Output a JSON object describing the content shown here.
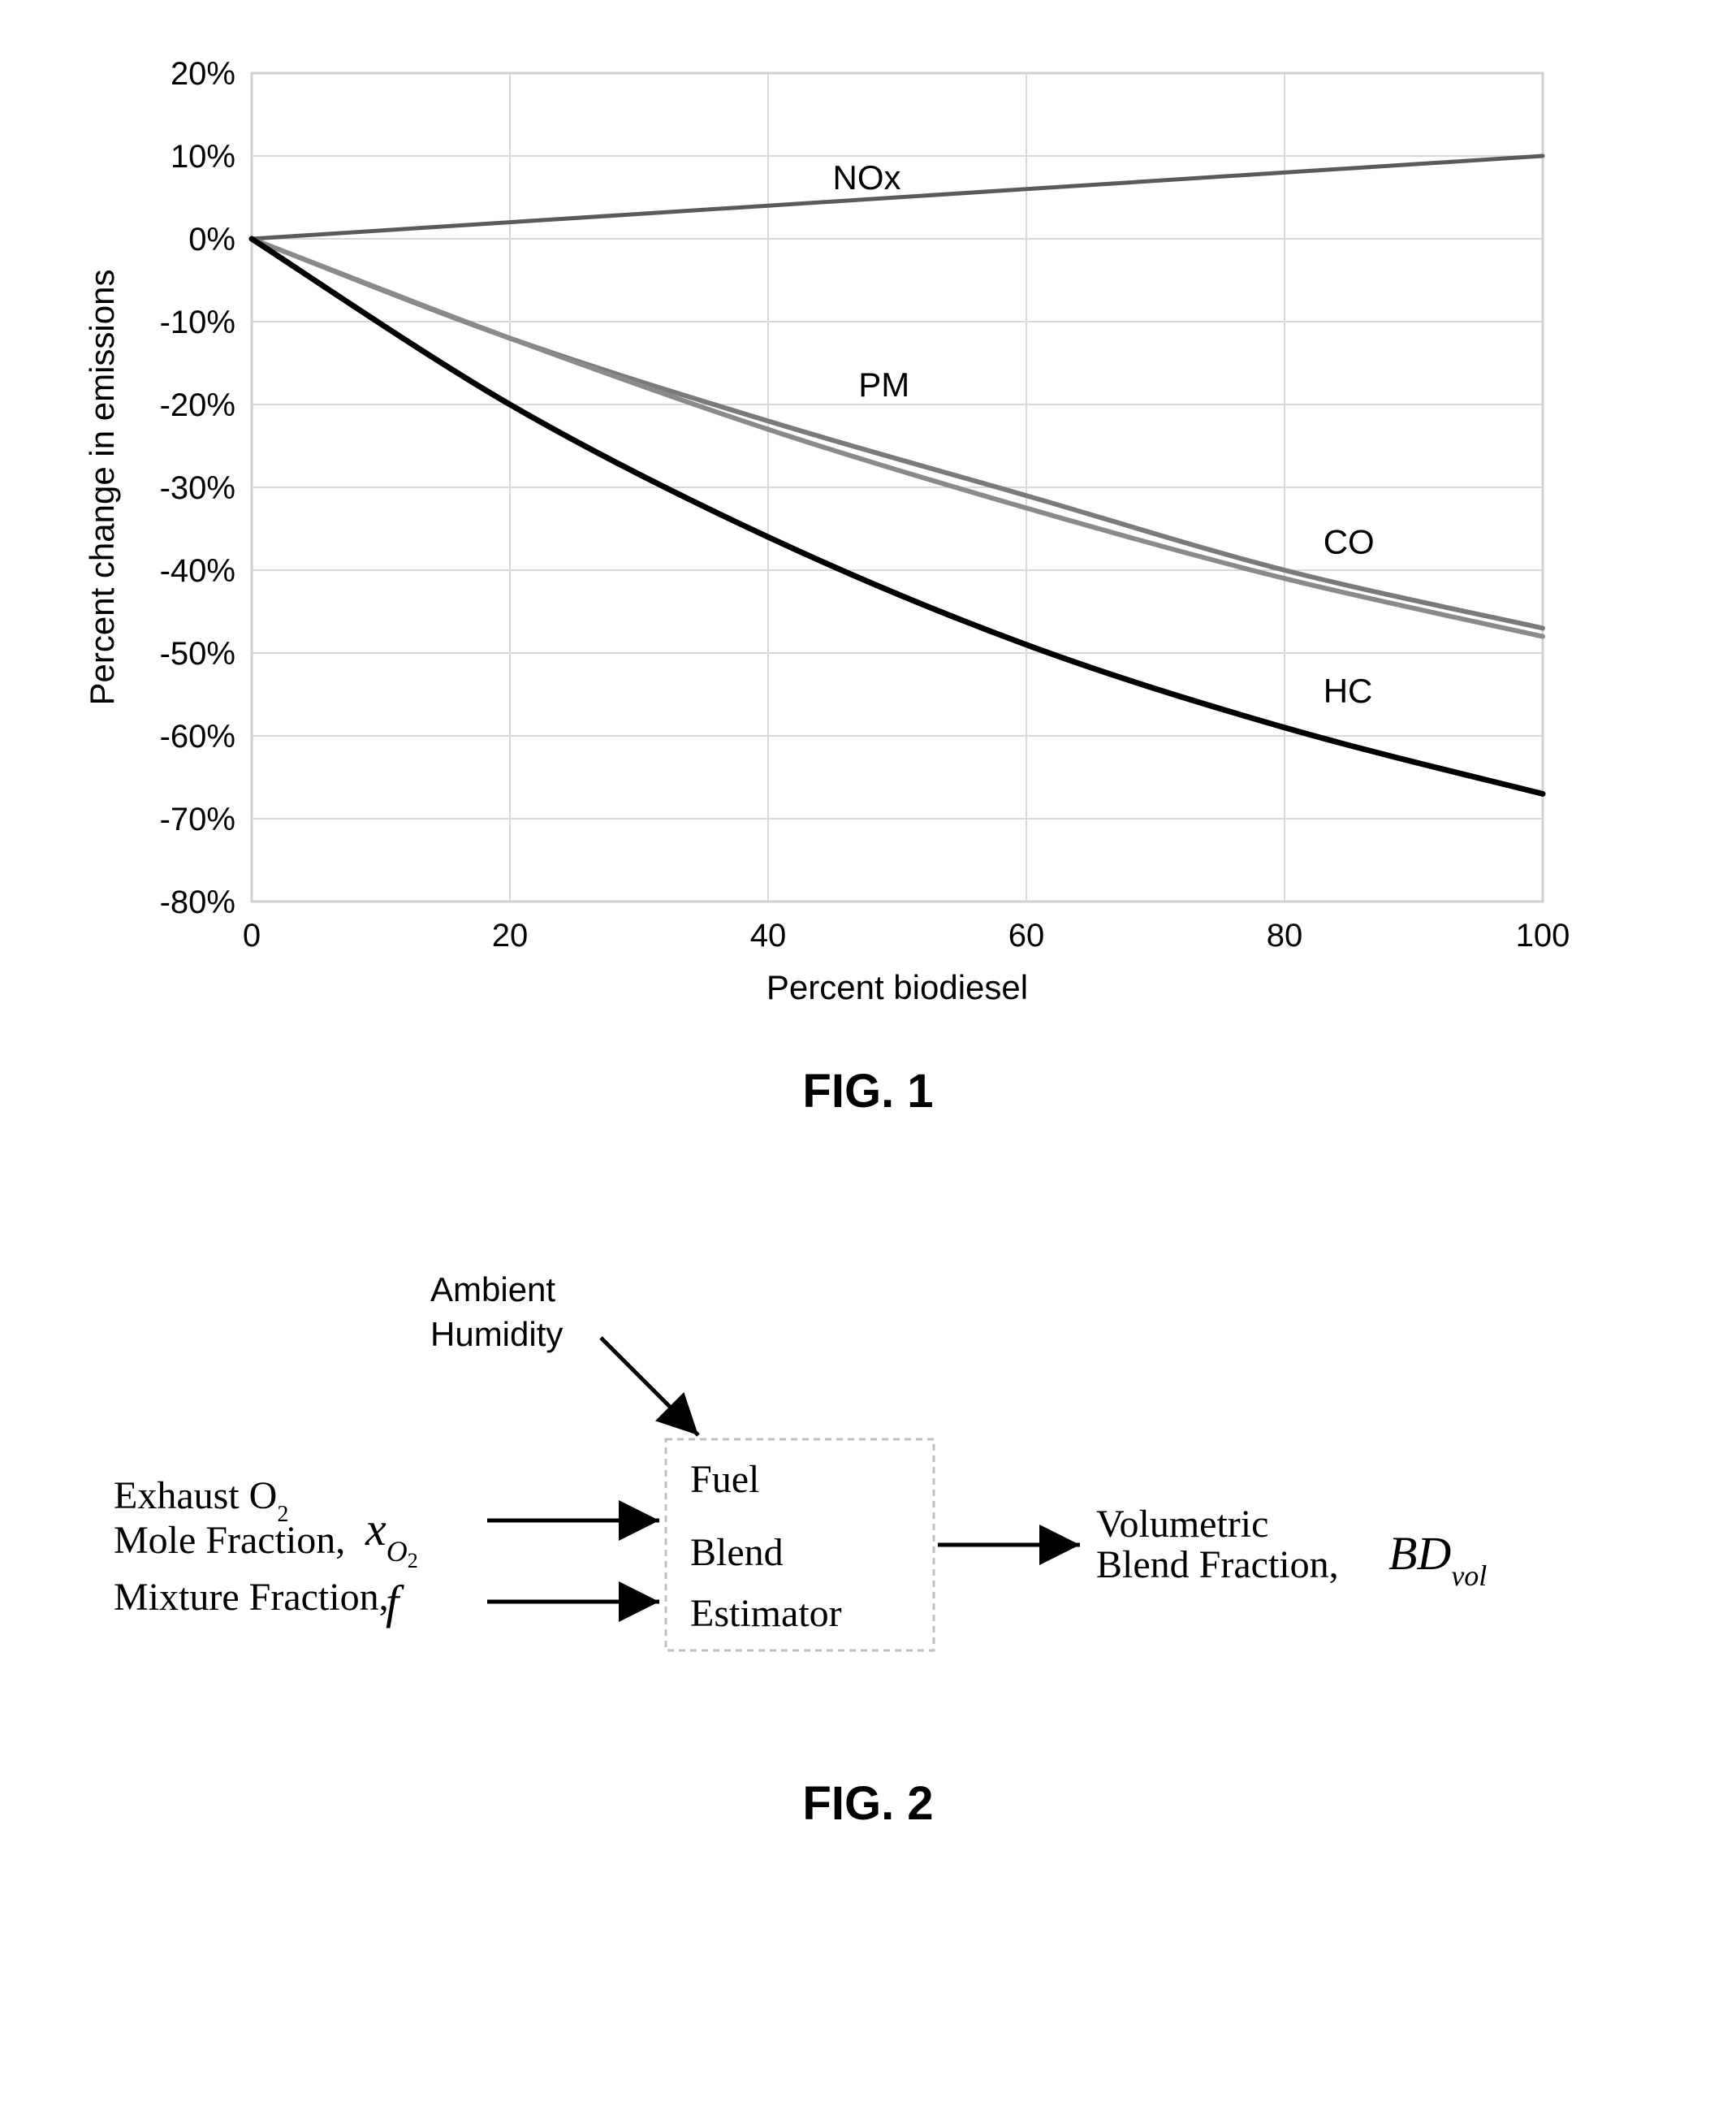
{
  "fig1": {
    "type": "line",
    "caption": "FIG. 1",
    "xlabel": "Percent biodiesel",
    "ylabel": "Percent change in emissions",
    "background_color": "#ffffff",
    "plot_background": "#ffffff",
    "plot_border_color": "#d0d0d0",
    "grid_color": "#d8d8d8",
    "text_color": "#000000",
    "label_fontsize": 42,
    "tick_fontsize": 40,
    "xlim": [
      0,
      100
    ],
    "ylim": [
      -80,
      20
    ],
    "xticks": [
      0,
      20,
      40,
      60,
      80,
      100
    ],
    "yticks": [
      -80,
      -70,
      -60,
      -50,
      -40,
      -30,
      -20,
      -10,
      0,
      10,
      20
    ],
    "ytick_labels": [
      "-80%",
      "-70%",
      "-60%",
      "-50%",
      "-40%",
      "-30%",
      "-20%",
      "-10%",
      "0%",
      "10%",
      "20%"
    ],
    "series": [
      {
        "name": "NOx",
        "label": "NOx",
        "color": "#5a5a5a",
        "width": 5,
        "x": [
          0,
          20,
          40,
          60,
          80,
          100
        ],
        "y": [
          0,
          2,
          4,
          6,
          8,
          10
        ],
        "label_pos": {
          "x": 45,
          "y": 6
        }
      },
      {
        "name": "PM",
        "label": "PM",
        "color": "#7a7a7a",
        "width": 6,
        "x": [
          0,
          20,
          40,
          60,
          80,
          100
        ],
        "y": [
          0,
          -12,
          -22,
          -31,
          -40,
          -47
        ],
        "label_pos": {
          "x": 47,
          "y": -19
        }
      },
      {
        "name": "CO",
        "label": "CO",
        "color": "#8a8a8a",
        "width": 6,
        "x": [
          0,
          20,
          40,
          60,
          80,
          100
        ],
        "y": [
          0,
          -12,
          -23,
          -32.5,
          -41,
          -48
        ],
        "label_pos": {
          "x": 83,
          "y": -38
        }
      },
      {
        "name": "HC",
        "label": "HC",
        "color": "#000000",
        "width": 7,
        "x": [
          0,
          20,
          40,
          60,
          80,
          100
        ],
        "y": [
          0,
          -20,
          -36,
          -49,
          -59,
          -67
        ],
        "label_pos": {
          "x": 83,
          "y": -56
        }
      }
    ]
  },
  "fig2": {
    "type": "flowchart",
    "caption": "FIG. 2",
    "text_color": "#000000",
    "box_border_color": "#bfbfbf",
    "box_background": "#ffffff",
    "arrow_color": "#000000",
    "inputs": {
      "ambient": {
        "label": "Ambient Humidity"
      },
      "o2": {
        "label_prefix": "Exhaust O",
        "label_sub": "2",
        "label_after": "Mole Fraction,",
        "var": "x",
        "var_sub": "O",
        "var_sub2": "2"
      },
      "f": {
        "label": "Mixture Fraction,",
        "var": "f"
      }
    },
    "box": {
      "line1": "Fuel",
      "line2": "Blend",
      "line3": "Estimator"
    },
    "output": {
      "label": "Volumetric",
      "label2": "Blend Fraction,",
      "var": "BD",
      "var_sub": "vol"
    }
  }
}
